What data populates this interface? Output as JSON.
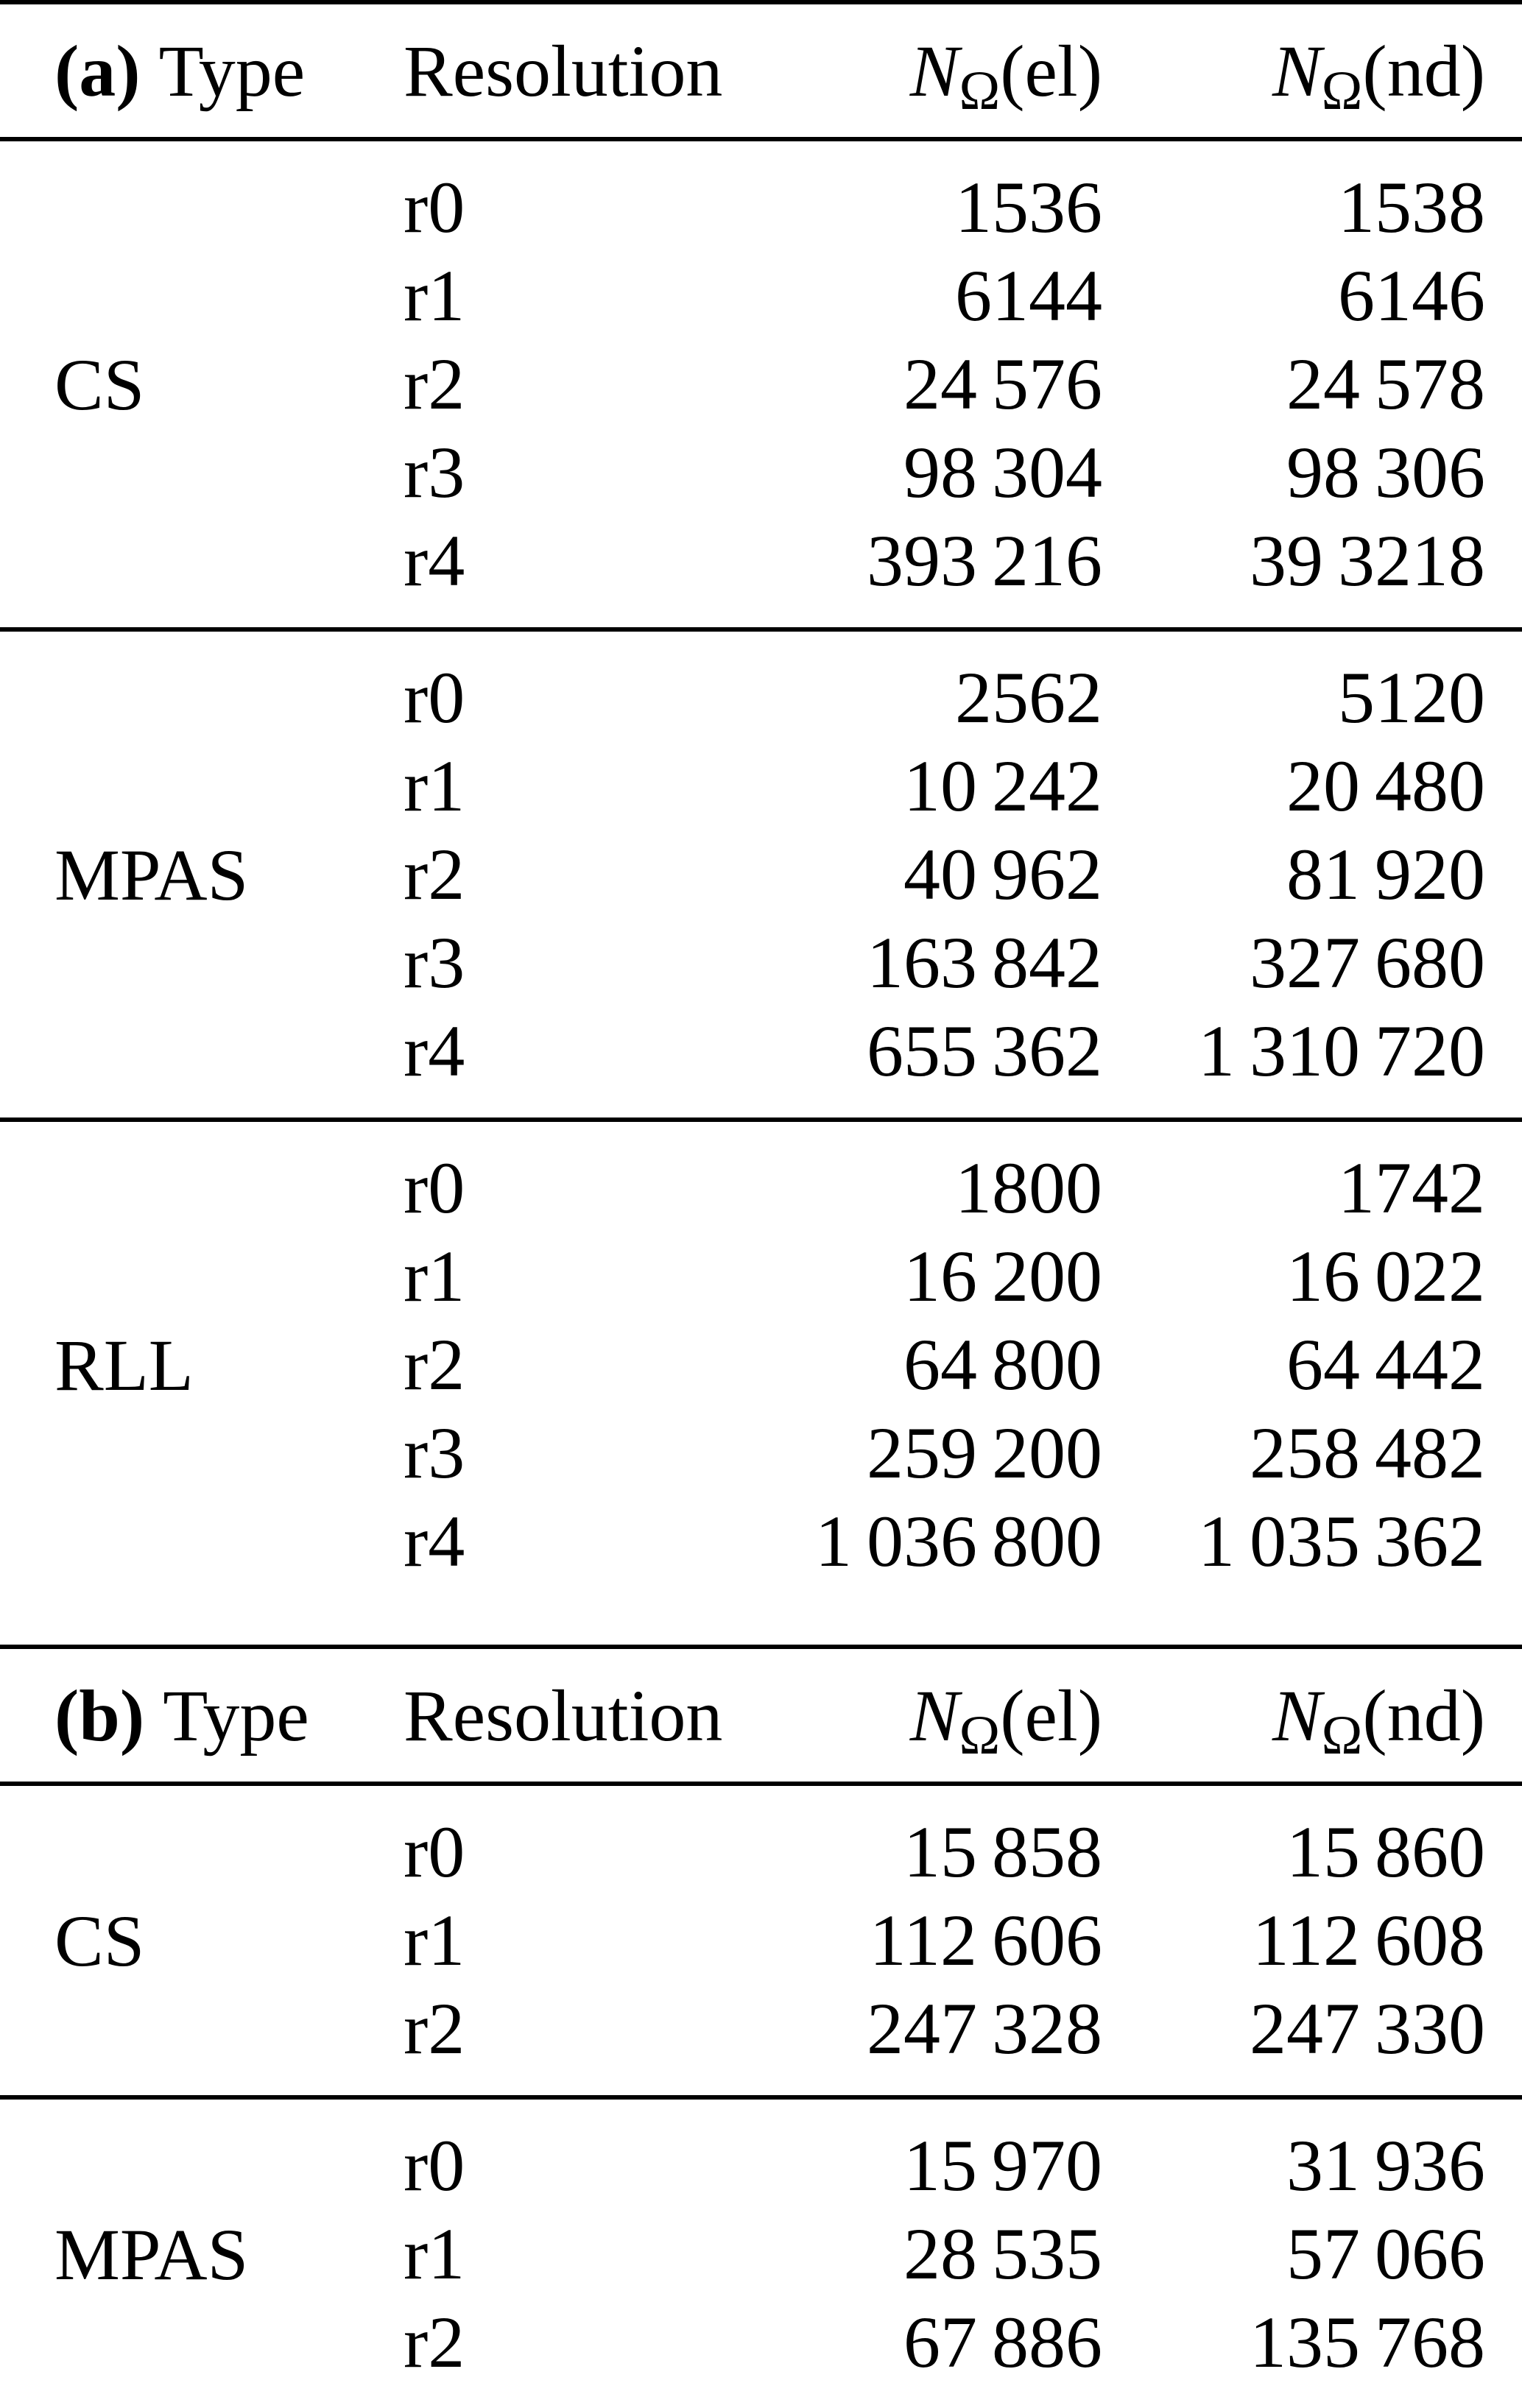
{
  "page": {
    "background": "#ffffff",
    "text_color": "#000000"
  },
  "table_a": {
    "label_bold": "(a)",
    "label_rest": "Type",
    "headers": {
      "resolution": "Resolution",
      "n": "N",
      "omega": "Ω",
      "el": "(el)",
      "nd": "(nd)"
    },
    "sections": [
      {
        "type": "CS",
        "rows": [
          {
            "res": "r0",
            "el": "1536",
            "nd": "1538"
          },
          {
            "res": "r1",
            "el": "6144",
            "nd": "6146"
          },
          {
            "res": "r2",
            "el": "24 576",
            "nd": "24 578"
          },
          {
            "res": "r3",
            "el": "98 304",
            "nd": "98 306"
          },
          {
            "res": "r4",
            "el": "393 216",
            "nd": "39 3218"
          }
        ]
      },
      {
        "type": "MPAS",
        "rows": [
          {
            "res": "r0",
            "el": "2562",
            "nd": "5120"
          },
          {
            "res": "r1",
            "el": "10 242",
            "nd": "20 480"
          },
          {
            "res": "r2",
            "el": "40 962",
            "nd": "81 920"
          },
          {
            "res": "r3",
            "el": "163 842",
            "nd": "327 680"
          },
          {
            "res": "r4",
            "el": "655 362",
            "nd": "1 310 720"
          }
        ]
      },
      {
        "type": "RLL",
        "rows": [
          {
            "res": "r0",
            "el": "1800",
            "nd": "1742"
          },
          {
            "res": "r1",
            "el": "16 200",
            "nd": "16 022"
          },
          {
            "res": "r2",
            "el": "64 800",
            "nd": "64 442"
          },
          {
            "res": "r3",
            "el": "259 200",
            "nd": "258 482"
          },
          {
            "res": "r4",
            "el": "1 036 800",
            "nd": "1 035 362"
          }
        ]
      }
    ]
  },
  "table_b": {
    "label_bold": "(b)",
    "label_rest": "Type",
    "headers": {
      "resolution": "Resolution",
      "n": "N",
      "omega": "Ω",
      "el": "(el)",
      "nd": "(nd)"
    },
    "sections": [
      {
        "type": "CS",
        "rows": [
          {
            "res": "r0",
            "el": "15 858",
            "nd": "15 860"
          },
          {
            "res": "r1",
            "el": "112 606",
            "nd": "112 608"
          },
          {
            "res": "r2",
            "el": "247 328",
            "nd": "247 330"
          }
        ]
      },
      {
        "type": "MPAS",
        "rows": [
          {
            "res": "r0",
            "el": "15 970",
            "nd": "31 936"
          },
          {
            "res": "r1",
            "el": "28 535",
            "nd": "57 066"
          },
          {
            "res": "r2",
            "el": "67 886",
            "nd": "135 768"
          }
        ]
      }
    ]
  }
}
